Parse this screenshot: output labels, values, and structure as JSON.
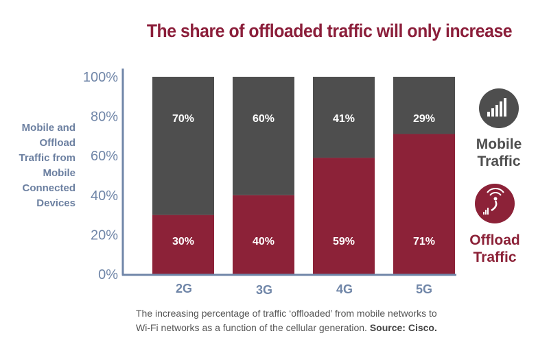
{
  "chart_data": {
    "type": "bar",
    "stacked": true,
    "title": "The share of offloaded traffic will only increase",
    "ylabel": "Mobile and Offload Traffic from Mobile Connected Devices",
    "xlabel": "",
    "categories": [
      "2G",
      "3G",
      "4G",
      "5G"
    ],
    "ylim": [
      0,
      100
    ],
    "yticks": [
      "0%",
      "20%",
      "40%",
      "60%",
      "80%",
      "100%"
    ],
    "series": [
      {
        "name": "Offload Traffic",
        "values": [
          30,
          40,
          59,
          71
        ],
        "labels": [
          "30%",
          "40%",
          "59%",
          "71%"
        ],
        "color": "#8c2238"
      },
      {
        "name": "Mobile Traffic",
        "values": [
          70,
          60,
          41,
          29
        ],
        "labels": [
          "70%",
          "60%",
          "41%",
          "29%"
        ],
        "color": "#4e4e4e"
      }
    ],
    "grid": false,
    "legend": "right"
  },
  "legend": {
    "mobile": {
      "line1": "Mobile",
      "line2": "Traffic",
      "icon": "cellular-signal-icon",
      "color": "#4e4e4e"
    },
    "offload": {
      "line1": "Offload",
      "line2": "Traffic",
      "icon": "wifi-offload-icon",
      "color": "#8c2238"
    }
  },
  "caption": {
    "line1": "The increasing percentage of traffic ‘offloaded’ from mobile networks to",
    "line2": "Wi-Fi networks as a function of the cellular generation.",
    "source": "Source: Cisco."
  },
  "axis_color": "#7086a8"
}
